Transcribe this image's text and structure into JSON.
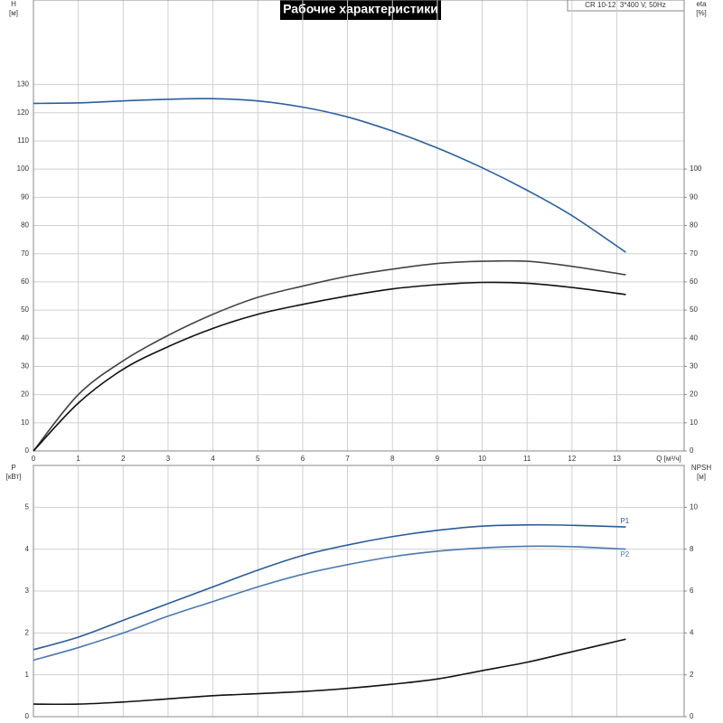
{
  "chart_data": [
    {
      "type": "line",
      "title": "Рабочие характеристики",
      "annotation": "CR 10-12, 3*400 V, 50Hz",
      "y_label": "H",
      "y_unit": "[м]",
      "y2_label": "eta",
      "y2_unit": "[%]",
      "x_label": "Q [м³/ч]",
      "x": [
        0,
        1,
        2,
        3,
        4,
        5,
        6,
        7,
        8,
        9,
        10,
        11,
        12,
        13.2
      ],
      "xlim": [
        0,
        14.5
      ],
      "xticks": [
        0,
        1,
        2,
        3,
        4,
        5,
        6,
        7,
        8,
        9,
        10,
        11,
        12,
        13
      ],
      "ylim": [
        0,
        160
      ],
      "yticks": [
        0,
        10,
        20,
        30,
        40,
        50,
        60,
        70,
        80,
        90,
        100,
        110,
        120,
        130
      ],
      "y2lim": [
        0,
        160
      ],
      "y2ticks": [
        0,
        10,
        20,
        30,
        40,
        50,
        60,
        70,
        80,
        90,
        100
      ],
      "grid": true,
      "series": [
        {
          "color": "#2b5f9e",
          "values": [
            123.3,
            123.5,
            124.2,
            124.8,
            125,
            124.2,
            122,
            118.5,
            113.5,
            107.5,
            100.5,
            92.5,
            83.5,
            70.5
          ]
        },
        {
          "color": "#444444",
          "axis": "y2",
          "values": [
            0,
            20,
            32,
            41,
            48.5,
            54.5,
            58.5,
            62,
            64.5,
            66.5,
            67.3,
            67.3,
            65.5,
            62.5
          ]
        },
        {
          "color": "#111111",
          "axis": "y2",
          "values": [
            0,
            17,
            29,
            37,
            43.5,
            48.5,
            52,
            55,
            57.5,
            59,
            59.8,
            59.5,
            58,
            55.5
          ]
        }
      ]
    },
    {
      "type": "line",
      "y_label": "P",
      "y_unit": "[кВт]",
      "y2_label": "NPSH",
      "y2_unit": "[м]",
      "x": [
        0,
        1,
        2,
        3,
        4,
        5,
        6,
        7,
        8,
        9,
        10,
        11,
        12,
        13.2
      ],
      "xlim": [
        0,
        14.5
      ],
      "xticks": [
        0,
        1,
        2,
        3,
        4,
        5,
        6,
        7,
        8,
        9,
        10,
        11,
        12,
        13
      ],
      "ylim": [
        0,
        6
      ],
      "yticks": [
        0,
        1,
        2,
        3,
        4,
        5
      ],
      "y2lim": [
        0,
        12
      ],
      "y2ticks": [
        0,
        2,
        4,
        6,
        8,
        10
      ],
      "grid": true,
      "series": [
        {
          "name": "P1",
          "color": "#2a5b9a",
          "values": [
            1.6,
            1.9,
            2.3,
            2.7,
            3.1,
            3.5,
            3.85,
            4.1,
            4.3,
            4.45,
            4.55,
            4.58,
            4.57,
            4.53
          ]
        },
        {
          "name": "P2",
          "color": "#4a78b0",
          "values": [
            1.35,
            1.65,
            2.0,
            2.4,
            2.75,
            3.1,
            3.4,
            3.63,
            3.82,
            3.95,
            4.03,
            4.07,
            4.06,
            4.0
          ]
        },
        {
          "color": "#111111",
          "axis": "y2",
          "values": [
            0.6,
            0.6,
            0.7,
            0.85,
            1.0,
            1.1,
            1.2,
            1.35,
            1.55,
            1.8,
            2.2,
            2.6,
            3.1,
            3.7
          ]
        }
      ]
    }
  ]
}
